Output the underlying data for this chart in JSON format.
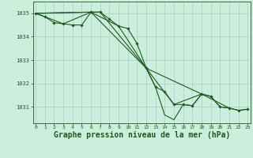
{
  "background_color": "#cceedd",
  "grid_color": "#aacccc",
  "line_color": "#1a5c1a",
  "marker_color": "#1a5c1a",
  "xlabel": "Graphe pression niveau de la mer (hPa)",
  "xlabel_fontsize": 7,
  "ylabel_ticks": [
    1031,
    1032,
    1033,
    1034,
    1035
  ],
  "xticks": [
    0,
    1,
    2,
    3,
    4,
    5,
    6,
    7,
    8,
    9,
    10,
    11,
    12,
    13,
    14,
    15,
    16,
    17,
    18,
    19,
    20,
    21,
    22,
    23
  ],
  "xlim": [
    -0.3,
    23.3
  ],
  "ylim": [
    1030.3,
    1035.5
  ],
  "series_main": {
    "x": [
      0,
      1,
      2,
      3,
      4,
      5,
      6,
      7,
      8,
      9,
      10,
      11,
      12,
      13,
      14,
      15,
      16,
      17,
      18,
      19,
      20,
      21,
      22,
      23
    ],
    "y": [
      1035.0,
      1034.85,
      1034.6,
      1034.55,
      1034.5,
      1034.5,
      1035.05,
      1035.05,
      1034.75,
      1034.45,
      1034.35,
      1033.7,
      1032.65,
      1031.85,
      1031.65,
      1031.1,
      1031.1,
      1031.05,
      1031.55,
      1031.45,
      1031.0,
      1030.95,
      1030.85,
      1030.9
    ]
  },
  "series_6h": {
    "x": [
      0,
      6,
      12,
      18
    ],
    "y": [
      1035.0,
      1035.05,
      1032.65,
      1031.55
    ]
  },
  "series_3h": {
    "x": [
      0,
      3,
      6,
      9,
      12,
      15,
      18,
      21
    ],
    "y": [
      1035.0,
      1034.55,
      1035.05,
      1034.45,
      1032.65,
      1031.1,
      1031.55,
      1030.95
    ]
  },
  "series_dip": {
    "x": [
      0,
      6,
      7,
      12,
      13,
      14,
      15,
      16,
      17,
      18,
      19,
      20,
      21,
      22,
      23
    ],
    "y": [
      1035.0,
      1035.05,
      1035.05,
      1032.65,
      1031.85,
      1030.65,
      1030.45,
      1031.1,
      1031.05,
      1031.55,
      1031.45,
      1031.0,
      1030.95,
      1030.85,
      1030.9
    ]
  }
}
